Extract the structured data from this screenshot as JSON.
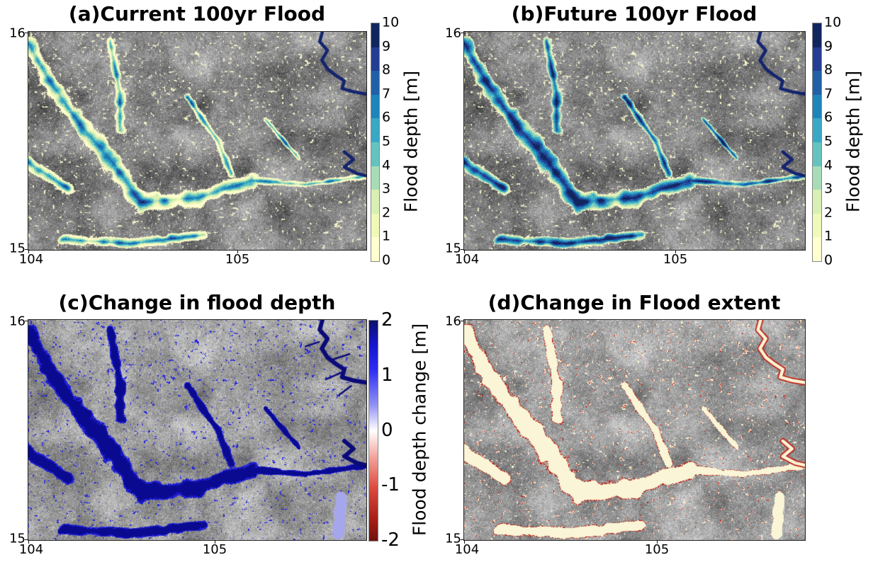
{
  "figure": {
    "type": "multi_panel_flood_maps",
    "background": "#ffffff",
    "panels": [
      {
        "id": "a",
        "title": "(a)Current 100yr Flood",
        "yticks": [
          "16",
          "15"
        ],
        "xticks": [
          "104",
          "105"
        ],
        "overlay": {
          "mode": "depth",
          "widen": 0,
          "depth_boost": 0,
          "terrain_light": false
        },
        "colorbar": {
          "type": "discrete",
          "label": "Flood depth [m]",
          "ticks": [
            "10",
            "9",
            "8",
            "7",
            "6",
            "5",
            "4",
            "3",
            "2",
            "1",
            "0"
          ]
        }
      },
      {
        "id": "b",
        "title": "(b)Future 100yr Flood",
        "yticks": [
          "16",
          "15"
        ],
        "xticks": [
          "104",
          "105"
        ],
        "overlay": {
          "mode": "depth",
          "widen": 0.035,
          "depth_boost": 2.4,
          "terrain_light": false
        },
        "colorbar": {
          "type": "discrete",
          "label": "Flood depth [m]",
          "ticks": [
            "10",
            "9",
            "8",
            "7",
            "6",
            "5",
            "4",
            "3",
            "2",
            "1",
            "0"
          ]
        }
      },
      {
        "id": "c",
        "title": "(c)Change in flood depth",
        "yticks": [
          "16",
          "15"
        ],
        "xticks": [
          "104",
          "105"
        ],
        "overlay": {
          "mode": "change",
          "terrain_light": true
        },
        "colorbar": {
          "type": "gradient",
          "label": "Flood depth change [m]",
          "ticks": [
            "2",
            "1",
            "0",
            "-1",
            "-2"
          ],
          "gradient": [
            [
              "0%",
              "#0a1168"
            ],
            [
              "10%",
              "#1314c8"
            ],
            [
              "22%",
              "#2b2bf2"
            ],
            [
              "38%",
              "#8f8ff6"
            ],
            [
              "50%",
              "#ffffff"
            ],
            [
              "62%",
              "#f2a49c"
            ],
            [
              "76%",
              "#dd4a3e"
            ],
            [
              "90%",
              "#a81f15"
            ],
            [
              "100%",
              "#6f110d"
            ]
          ]
        }
      },
      {
        "id": "d",
        "title": "(d)Change in Flood extent",
        "yticks": [
          "16",
          "15"
        ],
        "xticks": [
          "104",
          "105"
        ],
        "overlay": {
          "mode": "extent",
          "terrain_light": true
        },
        "colorbar": null
      }
    ],
    "axes": {
      "x_range": [
        104,
        105.6
      ],
      "y_range": [
        15,
        16
      ]
    },
    "depth_colors": [
      "#ffffd0",
      "#f0f9b8",
      "#d9f0b3",
      "#a8dcb6",
      "#64c3bf",
      "#38a8c5",
      "#1d84bc",
      "#2160a6",
      "#243d94",
      "#11265e"
    ],
    "overlay_colors": {
      "cream": "#f5f2c8",
      "extent_cream": "#f9f5d6",
      "red": "#c02018",
      "navy": "#0a0a90",
      "blue": "#2222dd",
      "lavender": "#a6a6ec",
      "river_blue": "#14246e",
      "river_change": "#0a0a78"
    },
    "map_geometry": {
      "main_segments": [
        [
          0.0,
          0.05,
          0.06,
          0.22,
          0.06
        ],
        [
          0.06,
          0.22,
          0.15,
          0.42,
          0.07
        ],
        [
          0.15,
          0.42,
          0.25,
          0.6,
          0.08
        ],
        [
          0.25,
          0.6,
          0.33,
          0.78,
          0.08
        ],
        [
          0.33,
          0.78,
          0.5,
          0.76,
          0.07
        ],
        [
          0.5,
          0.76,
          0.66,
          0.68,
          0.055
        ],
        [
          0.66,
          0.68,
          0.82,
          0.7,
          0.03
        ],
        [
          0.82,
          0.7,
          1.0,
          0.66,
          0.024
        ],
        [
          0.24,
          0.04,
          0.27,
          0.28,
          0.034
        ],
        [
          0.27,
          0.28,
          0.27,
          0.45,
          0.04
        ],
        [
          0.47,
          0.3,
          0.56,
          0.5,
          0.028
        ],
        [
          0.56,
          0.5,
          0.6,
          0.65,
          0.03
        ],
        [
          0.0,
          0.6,
          0.12,
          0.72,
          0.05
        ],
        [
          0.1,
          0.95,
          0.3,
          0.97,
          0.04
        ],
        [
          0.3,
          0.97,
          0.52,
          0.93,
          0.04
        ],
        [
          0.7,
          0.4,
          0.8,
          0.58,
          0.02
        ]
      ],
      "shallow_segments": [
        [
          0.925,
          0.8,
          0.915,
          0.97,
          0.05
        ]
      ],
      "river_path": [
        [
          0.87,
          0.0
        ],
        [
          0.862,
          0.045
        ],
        [
          0.885,
          0.085
        ],
        [
          0.868,
          0.13
        ],
        [
          0.885,
          0.17
        ],
        [
          0.91,
          0.2
        ],
        [
          0.935,
          0.225
        ],
        [
          0.928,
          0.26
        ],
        [
          0.962,
          0.275
        ],
        [
          1.0,
          0.285
        ]
      ],
      "river_path2": [
        [
          0.935,
          0.55
        ],
        [
          0.962,
          0.585
        ],
        [
          0.935,
          0.62
        ],
        [
          0.972,
          0.65
        ],
        [
          1.0,
          0.66
        ]
      ],
      "river_branches": [
        [
          [
            0.86,
            0.1
          ],
          [
            0.82,
            0.12
          ]
        ],
        [
          [
            0.9,
            0.18
          ],
          [
            0.95,
            0.155
          ]
        ],
        [
          [
            0.925,
            0.24
          ],
          [
            0.88,
            0.27
          ]
        ],
        [
          [
            0.955,
            0.3
          ],
          [
            0.92,
            0.34
          ]
        ]
      ]
    }
  }
}
